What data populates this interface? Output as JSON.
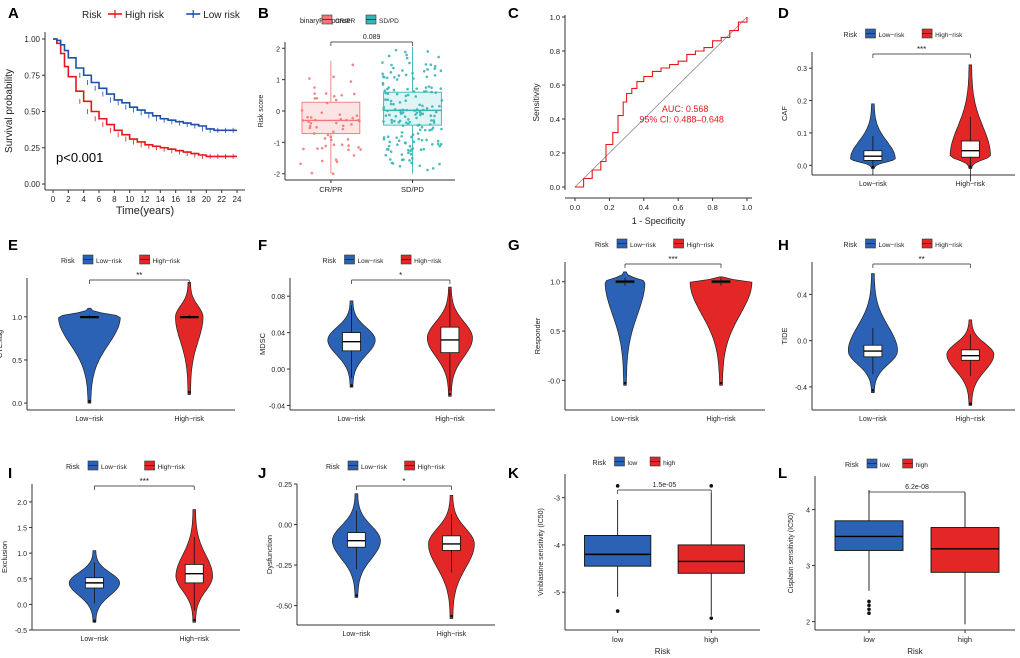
{
  "colors": {
    "high_red": "#e4181c",
    "low_blue": "#1f4fa8",
    "violin_blue": "#2c62b5",
    "violin_red": "#e32727",
    "crpr": "#f47777",
    "sdpd": "#36b5b5",
    "grey": "#888888",
    "axis": "#333333"
  },
  "chart_data": [
    {
      "panel": "A",
      "type": "line",
      "xlabel": "Time(years)",
      "ylabel": "Survival probability",
      "xlim": [
        0,
        24
      ],
      "ylim": [
        0,
        1
      ],
      "xticks": [
        "0",
        "2",
        "4",
        "6",
        "8",
        "10",
        "12",
        "14",
        "16",
        "18",
        "20",
        "22",
        "24"
      ],
      "yticks": [
        "0.00",
        "0.25",
        "0.50",
        "0.75",
        "1.00"
      ],
      "legend_title": "Risk",
      "annotation": "p<0.001",
      "series": [
        {
          "name": "High risk",
          "x": [
            0,
            0.5,
            1,
            1.5,
            2,
            3,
            4,
            5,
            6,
            7,
            8,
            9,
            10,
            11,
            12,
            13,
            14,
            15,
            16,
            17,
            18,
            19,
            20,
            21,
            22,
            23,
            24
          ],
          "y": [
            1,
            0.97,
            0.9,
            0.81,
            0.74,
            0.64,
            0.57,
            0.5,
            0.45,
            0.41,
            0.37,
            0.34,
            0.31,
            0.29,
            0.27,
            0.26,
            0.25,
            0.24,
            0.23,
            0.22,
            0.21,
            0.2,
            0.19,
            0.19,
            0.19,
            0.19,
            0.19
          ]
        },
        {
          "name": "Low risk",
          "x": [
            0,
            0.5,
            1,
            1.5,
            2,
            3,
            4,
            5,
            6,
            7,
            8,
            9,
            10,
            11,
            12,
            13,
            14,
            15,
            16,
            17,
            18,
            19,
            20,
            21,
            22,
            23,
            24
          ],
          "y": [
            1,
            0.99,
            0.96,
            0.92,
            0.87,
            0.8,
            0.75,
            0.7,
            0.66,
            0.62,
            0.58,
            0.56,
            0.53,
            0.51,
            0.49,
            0.47,
            0.45,
            0.44,
            0.43,
            0.42,
            0.41,
            0.4,
            0.38,
            0.37,
            0.37,
            0.37,
            0.37
          ]
        }
      ]
    },
    {
      "panel": "B",
      "type": "box",
      "legend_title": "binaryResponse",
      "categories": [
        "CR/PR",
        "SD/PD"
      ],
      "ylabel": "Risk score",
      "ylim": [
        -2.2,
        2.2
      ],
      "yticks": [
        "-2",
        "-1",
        "0",
        "1",
        "2"
      ],
      "pvalue": "0.089",
      "boxes": [
        {
          "name": "CR/PR",
          "q1": -0.72,
          "median": -0.3,
          "q3": 0.28,
          "lo": -2.0,
          "hi": 1.6
        },
        {
          "name": "SD/PD",
          "q1": -0.45,
          "median": 0.02,
          "q3": 0.6,
          "lo": -2.0,
          "hi": 2.05
        }
      ]
    },
    {
      "panel": "C",
      "type": "line",
      "xlabel": "1 - Specificity",
      "ylabel": "Sensitivity",
      "xlim": [
        0,
        1
      ],
      "ylim": [
        0,
        1
      ],
      "xticks": [
        "0.0",
        "0.2",
        "0.4",
        "0.6",
        "0.8",
        "1.0"
      ],
      "yticks": [
        "0.0",
        "0.2",
        "0.4",
        "0.6",
        "0.8",
        "1.0"
      ],
      "auc": "AUC: 0.568",
      "ci": "95% CI: 0.488–0.648",
      "roc_x": [
        0,
        0.05,
        0.1,
        0.15,
        0.18,
        0.22,
        0.25,
        0.28,
        0.3,
        0.33,
        0.36,
        0.4,
        0.45,
        0.5,
        0.55,
        0.6,
        0.65,
        0.7,
        0.75,
        0.8,
        0.85,
        0.9,
        0.95,
        1
      ],
      "roc_y": [
        0,
        0.05,
        0.1,
        0.15,
        0.25,
        0.32,
        0.42,
        0.5,
        0.55,
        0.58,
        0.62,
        0.65,
        0.68,
        0.7,
        0.72,
        0.74,
        0.78,
        0.8,
        0.82,
        0.86,
        0.88,
        0.92,
        0.97,
        1
      ]
    },
    {
      "panel": "D",
      "type": "violin",
      "legend_title": "Risk",
      "categories": [
        "Low−risk",
        "High−risk"
      ],
      "ylabel": "CAF",
      "ylim": [
        -0.03,
        0.35
      ],
      "yticks": [
        "0.0",
        "0.1",
        "0.2",
        "0.3"
      ],
      "sig": "***",
      "groups": [
        {
          "name": "Low−risk",
          "lo": -0.01,
          "hi": 0.19,
          "q1": 0.015,
          "median": 0.028,
          "q3": 0.045,
          "mode": 0.02,
          "width": 0.95
        },
        {
          "name": "High−risk",
          "lo": -0.01,
          "hi": 0.31,
          "q1": 0.025,
          "median": 0.045,
          "q3": 0.075,
          "mode": 0.03,
          "width": 0.85
        }
      ]
    },
    {
      "panel": "E",
      "type": "violin",
      "legend_title": "Risk",
      "categories": [
        "Low−risk",
        "High−risk"
      ],
      "ylabel": "CTL.flag",
      "ylim": [
        -0.08,
        1.45
      ],
      "yticks": [
        "0.0",
        "0.5",
        "1.0"
      ],
      "sig": "**",
      "groups": [
        {
          "name": "Low−risk",
          "lo": 0.0,
          "hi": 1.1,
          "q1": 0.995,
          "median": 1.0,
          "q3": 1.005,
          "mode": 1.0,
          "width": 1.3
        },
        {
          "name": "High−risk",
          "lo": 0.1,
          "hi": 1.4,
          "q1": 0.995,
          "median": 1.0,
          "q3": 1.005,
          "mode": 1.0,
          "width": 0.55
        }
      ]
    },
    {
      "panel": "F",
      "type": "violin",
      "legend_title": "Risk",
      "categories": [
        "Low−risk",
        "High−risk"
      ],
      "ylabel": "MDSC",
      "ylim": [
        -0.045,
        0.1
      ],
      "yticks": [
        "-0.04",
        "0.00",
        "0.04",
        "0.08"
      ],
      "sig": "*",
      "groups": [
        {
          "name": "Low−risk",
          "lo": -0.02,
          "hi": 0.075,
          "q1": 0.02,
          "median": 0.03,
          "q3": 0.04,
          "mode": 0.032,
          "width": 1.0
        },
        {
          "name": "High−risk",
          "lo": -0.03,
          "hi": 0.09,
          "q1": 0.018,
          "median": 0.032,
          "q3": 0.046,
          "mode": 0.034,
          "width": 0.95
        }
      ]
    },
    {
      "panel": "G",
      "type": "violin",
      "legend_title": "Risk",
      "categories": [
        "Low−risk",
        "High−risk"
      ],
      "ylabel": "Responder",
      "ylim": [
        -0.3,
        1.2
      ],
      "yticks": [
        "-0.0",
        "0.5",
        "1.0"
      ],
      "sig": "***",
      "groups": [
        {
          "name": "Low−risk",
          "lo": -0.05,
          "hi": 1.1,
          "q1": 0.99,
          "median": 1.0,
          "q3": 1.01,
          "mode": 1.0,
          "width": 0.85
        },
        {
          "name": "High−risk",
          "lo": -0.05,
          "hi": 1.05,
          "q1": 0.99,
          "median": 1.0,
          "q3": 1.01,
          "mode": 1.0,
          "width": 1.35
        }
      ]
    },
    {
      "panel": "H",
      "type": "violin",
      "legend_title": "Risk",
      "categories": [
        "Low−risk",
        "High−risk"
      ],
      "ylabel": "TIDE",
      "ylim": [
        -0.6,
        0.68
      ],
      "yticks": [
        "-0.4",
        "0.0",
        "0.4"
      ],
      "sig": "**",
      "groups": [
        {
          "name": "Low−risk",
          "lo": -0.45,
          "hi": 0.58,
          "q1": -0.14,
          "median": -0.09,
          "q3": -0.04,
          "mode": -0.09,
          "width": 1.05
        },
        {
          "name": "High−risk",
          "lo": -0.56,
          "hi": 0.18,
          "q1": -0.17,
          "median": -0.13,
          "q3": -0.08,
          "mode": -0.12,
          "width": 1.0
        }
      ]
    },
    {
      "panel": "I",
      "type": "violin",
      "legend_title": "Risk",
      "categories": [
        "Low−risk",
        "High−risk"
      ],
      "ylabel": "Exclusion",
      "ylim": [
        -0.5,
        2.35
      ],
      "yticks": [
        "-0.5",
        "0.0",
        "0.5",
        "1.0",
        "1.5",
        "2.0"
      ],
      "sig": "***",
      "groups": [
        {
          "name": "Low−risk",
          "lo": -0.35,
          "hi": 1.05,
          "q1": 0.32,
          "median": 0.42,
          "q3": 0.52,
          "mode": 0.42,
          "width": 1.05
        },
        {
          "name": "High−risk",
          "lo": -0.35,
          "hi": 1.85,
          "q1": 0.42,
          "median": 0.6,
          "q3": 0.78,
          "mode": 0.55,
          "width": 0.75
        }
      ]
    },
    {
      "panel": "J",
      "type": "violin",
      "legend_title": "Risk",
      "categories": [
        "Low−risk",
        "High−risk"
      ],
      "ylabel": "Dysfunction",
      "ylim": [
        -0.62,
        0.25
      ],
      "yticks": [
        "-0.50",
        "-0.25",
        "0.00",
        "0.25"
      ],
      "sig": "*",
      "groups": [
        {
          "name": "Low−risk",
          "lo": -0.45,
          "hi": 0.19,
          "q1": -0.14,
          "median": -0.1,
          "q3": -0.05,
          "mode": -0.1,
          "width": 1.05
        },
        {
          "name": "High−risk",
          "lo": -0.58,
          "hi": 0.18,
          "q1": -0.16,
          "median": -0.12,
          "q3": -0.07,
          "mode": -0.12,
          "width": 1.0
        }
      ]
    },
    {
      "panel": "K",
      "type": "box",
      "legend_title": "Risk",
      "legend_labels": [
        "low",
        "high"
      ],
      "categories": [
        "low",
        "high"
      ],
      "xlabel": "Risk",
      "ylabel": "Vinblastine sensitivity (IC50)",
      "ylim": [
        -5.8,
        -2.5
      ],
      "yticks": [
        "-5",
        "-4",
        "-3"
      ],
      "pvalue": "1.5e-05",
      "boxes": [
        {
          "name": "low",
          "q1": -4.45,
          "median": -4.2,
          "q3": -3.8,
          "lo": -5.1,
          "hi": -3.05,
          "outliers": [
            -2.75,
            -5.4
          ]
        },
        {
          "name": "high",
          "q1": -4.6,
          "median": -4.35,
          "q3": -4.0,
          "lo": -5.5,
          "hi": -2.9,
          "outliers": [
            -2.75,
            -5.55
          ]
        }
      ]
    },
    {
      "panel": "L",
      "type": "box",
      "legend_title": "Risk",
      "legend_labels": [
        "low",
        "high"
      ],
      "categories": [
        "low",
        "high"
      ],
      "xlabel": "Risk",
      "ylabel": "Cisplatin sensitivity (IC50)",
      "ylim": [
        1.85,
        4.6
      ],
      "yticks": [
        "2",
        "3",
        "4"
      ],
      "pvalue": "6.2e-08",
      "boxes": [
        {
          "name": "low",
          "q1": 3.27,
          "median": 3.52,
          "q3": 3.8,
          "lo": 2.55,
          "hi": 4.35,
          "outliers": [
            2.15,
            2.22,
            2.29,
            2.36
          ]
        },
        {
          "name": "high",
          "q1": 2.88,
          "median": 3.3,
          "q3": 3.68,
          "lo": 1.95,
          "hi": 4.3,
          "outliers": []
        }
      ]
    }
  ]
}
